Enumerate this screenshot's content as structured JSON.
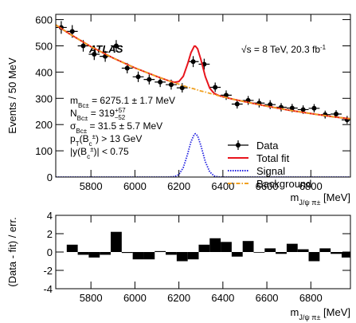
{
  "chart_data": [
    {
      "type": "line",
      "ylabel": "Events / 50 MeV",
      "xlabel": [
        "m",
        "J/ψ π±",
        " [MeV]"
      ],
      "xlim": [
        5640,
        6980
      ],
      "xticks": [
        5800,
        6000,
        6200,
        6400,
        6600,
        6800
      ],
      "ylim": [
        0,
        620
      ],
      "yticks": [
        0,
        100,
        200,
        300,
        400,
        500,
        600
      ],
      "legend": "lower right",
      "annotations": {
        "experiment": "ATLAS",
        "energy": [
          "√s = 8 TeV, 20.3 fb",
          "-1"
        ],
        "fit": [
          [
            "m",
            "Bc±",
            " = 6275.1 ± 1.7 MeV"
          ],
          [
            "N",
            "Bc±",
            " = 319",
            "+57",
            "−52"
          ],
          [
            "σ",
            "Bc±",
            " = 31.5 ± 5.7 MeV"
          ],
          [
            "p",
            "T",
            "(B",
            "c",
            "±",
            ") > 13 GeV"
          ],
          [
            "|y(B",
            "c",
            "±",
            ")| < 0.75"
          ]
        ]
      },
      "series": [
        {
          "name": "Data",
          "color": "#000000",
          "style": "errorbar",
          "x": [
            5665,
            5715,
            5765,
            5815,
            5865,
            5915,
            5965,
            6015,
            6065,
            6115,
            6165,
            6215,
            6265,
            6315,
            6365,
            6415,
            6465,
            6515,
            6565,
            6615,
            6665,
            6715,
            6765,
            6815,
            6865,
            6915,
            6965
          ],
          "values": [
            570,
            555,
            500,
            468,
            460,
            500,
            415,
            382,
            372,
            362,
            352,
            340,
            440,
            430,
            342,
            312,
            278,
            292,
            282,
            276,
            266,
            263,
            257,
            262,
            238,
            240,
            218
          ],
          "errors": [
            24,
            24,
            22,
            22,
            21,
            22,
            20,
            20,
            19,
            19,
            19,
            18,
            21,
            21,
            18,
            18,
            17,
            17,
            17,
            17,
            16,
            16,
            16,
            16,
            15,
            15,
            15
          ]
        },
        {
          "name": "Total fit",
          "color": "#e8141c",
          "style": "solid",
          "x": [
            5640,
            5700,
            5800,
            5900,
            6000,
            6100,
            6150,
            6180,
            6200,
            6220,
            6240,
            6255,
            6270,
            6275,
            6285,
            6300,
            6320,
            6340,
            6360,
            6380,
            6400,
            6450,
            6500,
            6600,
            6700,
            6800,
            6900,
            6980
          ],
          "values": [
            580,
            547,
            497,
            454,
            416,
            383,
            368,
            361,
            364,
            384,
            432,
            474,
            499,
            499,
            489,
            448,
            383,
            339,
            319,
            311,
            306,
            296,
            287,
            270,
            255,
            242,
            230,
            222
          ]
        },
        {
          "name": "Signal",
          "color": "#2020e0",
          "style": "dotted",
          "x": [
            5640,
            5700,
            5800,
            5900,
            6000,
            6100,
            6150,
            6180,
            6200,
            6220,
            6240,
            6255,
            6270,
            6275,
            6285,
            6300,
            6320,
            6340,
            6360,
            6380,
            6400,
            6450,
            6500,
            6600,
            6700,
            6800,
            6900,
            6980
          ],
          "values": [
            0,
            0,
            0,
            0,
            0,
            0,
            0,
            1.7,
            9.7,
            36,
            89,
            135,
            163,
            165,
            157,
            120,
            59,
            20,
            4.3,
            0.6,
            0,
            0,
            0,
            0,
            0,
            0,
            0,
            0
          ]
        },
        {
          "name": "Background",
          "color": "#f0a020",
          "style": "dashdot",
          "x": [
            5640,
            5700,
            5800,
            5900,
            6000,
            6100,
            6150,
            6180,
            6200,
            6220,
            6240,
            6255,
            6270,
            6275,
            6285,
            6300,
            6320,
            6340,
            6360,
            6380,
            6400,
            6450,
            6500,
            6600,
            6700,
            6800,
            6900,
            6980
          ],
          "values": [
            580,
            547,
            497,
            454,
            416,
            383,
            368,
            359,
            354,
            348,
            343,
            339,
            336,
            334,
            332,
            328,
            324,
            319,
            315,
            310,
            306,
            296,
            287,
            270,
            255,
            242,
            230,
            222
          ]
        }
      ]
    },
    {
      "type": "bar",
      "ylabel": "(Data - fit) / err.",
      "xlabel": [
        "m",
        "J/ψ π±",
        " [MeV]"
      ],
      "xlim": [
        5640,
        6980
      ],
      "xticks": [
        5800,
        6000,
        6200,
        6400,
        6600,
        6800
      ],
      "ylim": [
        -4,
        4
      ],
      "yticks": [
        -4,
        -2,
        0,
        2,
        4
      ],
      "color": "#000000",
      "x": [
        5715,
        5765,
        5815,
        5865,
        5915,
        5965,
        6015,
        6065,
        6115,
        6165,
        6215,
        6265,
        6315,
        6365,
        6415,
        6465,
        6515,
        6565,
        6615,
        6665,
        6715,
        6765,
        6815,
        6865,
        6915,
        6965
      ],
      "values": [
        0.8,
        -0.3,
        -0.6,
        -0.3,
        2.2,
        -0.1,
        -0.8,
        -0.8,
        0.1,
        -0.3,
        -1.0,
        -0.8,
        0.8,
        1.5,
        1.1,
        -0.5,
        1.2,
        0.0,
        0.4,
        -0.2,
        0.9,
        0.3,
        -1.0,
        0.4,
        -0.2,
        -0.6
      ]
    }
  ]
}
